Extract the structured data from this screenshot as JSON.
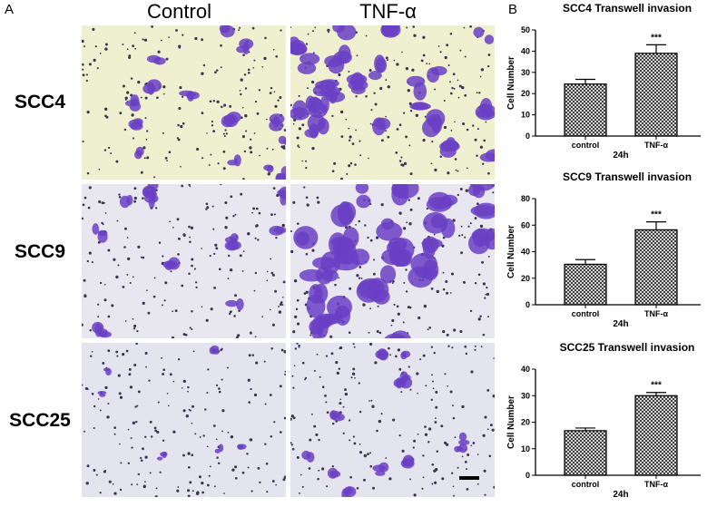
{
  "figure": {
    "panel_a": "A",
    "panel_b": "B",
    "columns": [
      "Control",
      "TNF-α"
    ],
    "rows": [
      "SCC4",
      "SCC9",
      "SCC25"
    ],
    "micrograph_colors": {
      "SCC4": "#eef0cf",
      "SCC9": "#e8e6ee",
      "SCC25": "#e4e4ee",
      "stain": "#6a3fc4"
    }
  },
  "chart_data": [
    {
      "type": "bar",
      "title": "SCC4 Transwell invasion",
      "categories": [
        "control",
        "TNF-α"
      ],
      "values": [
        24.5,
        39
      ],
      "errors": [
        2.2,
        4
      ],
      "significance": [
        "",
        "***"
      ],
      "ylabel": "Cell Number",
      "xlabel": "24h",
      "ylim": [
        0,
        50
      ],
      "yticks": [
        "0",
        "10",
        "20",
        "30",
        "40",
        "50"
      ]
    },
    {
      "type": "bar",
      "title": "SCC9 Transwell invasion",
      "categories": [
        "control",
        "TNF-α"
      ],
      "values": [
        30.5,
        56.5
      ],
      "errors": [
        3.5,
        6
      ],
      "significance": [
        "",
        "***"
      ],
      "ylabel": "Cell Number",
      "xlabel": "24h",
      "ylim": [
        0,
        80
      ],
      "yticks": [
        "0",
        "20",
        "40",
        "60",
        "80"
      ]
    },
    {
      "type": "bar",
      "title": "SCC25 Transwell invasion",
      "categories": [
        "control",
        "TNF-α"
      ],
      "values": [
        16.8,
        30
      ],
      "errors": [
        1,
        1.2
      ],
      "significance": [
        "",
        "***"
      ],
      "ylabel": "Cell Number",
      "xlabel": "24h",
      "ylim": [
        0,
        40
      ],
      "yticks": [
        "0",
        "10",
        "20",
        "30",
        "40"
      ]
    }
  ]
}
